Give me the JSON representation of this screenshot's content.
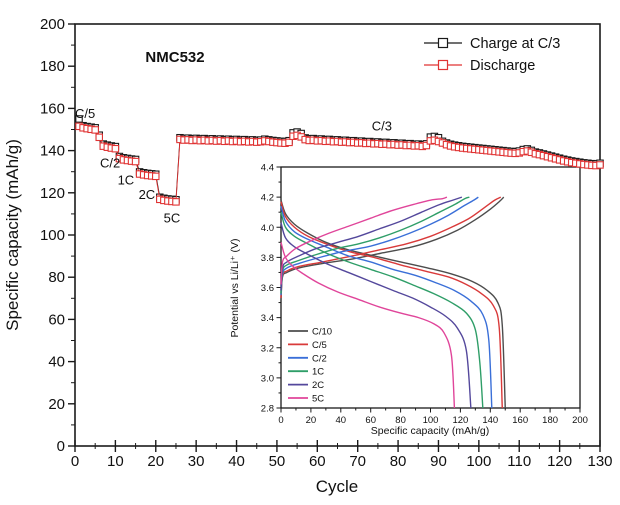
{
  "figure": {
    "background": "#ffffff"
  },
  "chart_data": [
    {
      "type": "scatter",
      "sample_label": "NMC532",
      "xlabel": "Cycle",
      "ylabel": "Specific capacity (mAh/g)",
      "xlim": [
        0,
        130
      ],
      "ylim": [
        0,
        200
      ],
      "x_major_tick": 10,
      "x_minor_tick": 5,
      "y_major_tick": 20,
      "y_minor_tick": 10,
      "grid": false,
      "legend_position": "top-right",
      "cycle_start": 1,
      "annotations": [
        {
          "text": "C/5",
          "x": 2.5,
          "y": 155.5
        },
        {
          "text": "C/2",
          "x": 8.7,
          "y": 132
        },
        {
          "text": "1C",
          "x": 12.6,
          "y": 124
        },
        {
          "text": "2C",
          "x": 17.8,
          "y": 117
        },
        {
          "text": "5C",
          "x": 24,
          "y": 106
        },
        {
          "text": "C/3",
          "x": 76,
          "y": 149.5
        }
      ],
      "series": [
        {
          "name": "Charge at C/3",
          "color": "#1a1a1a",
          "marker": "open-square",
          "values": [
            155.0,
            151.8,
            151.4,
            151.1,
            150.8,
            147.3,
            143.1,
            142.6,
            142.2,
            141.9,
            137.2,
            136.6,
            136.3,
            136.0,
            135.8,
            129.9,
            129.5,
            129.2,
            129.0,
            128.8,
            117.9,
            117.4,
            117.1,
            116.9,
            116.7,
            146.1,
            145.8,
            145.9,
            145.6,
            145.8,
            145.5,
            145.7,
            145.4,
            145.6,
            145.3,
            145.5,
            145.2,
            145.4,
            145.1,
            145.3,
            145.0,
            145.2,
            144.9,
            145.1,
            144.8,
            145.0,
            145.4,
            145.1,
            144.8,
            144.6,
            144.4,
            144.3,
            144.7,
            148.4,
            148.8,
            148.1,
            146.0,
            145.6,
            145.7,
            145.4,
            145.5,
            145.2,
            145.3,
            145.0,
            145.1,
            144.8,
            144.9,
            144.6,
            144.7,
            144.4,
            144.5,
            144.2,
            144.3,
            144.0,
            144.1,
            143.8,
            143.9,
            143.6,
            143.7,
            143.4,
            143.5,
            143.2,
            143.3,
            143.0,
            143.1,
            142.8,
            143.2,
            146.4,
            146.7,
            146.1,
            144.4,
            143.6,
            143.0,
            142.6,
            142.3,
            142.0,
            141.8,
            141.6,
            141.4,
            141.2,
            141.0,
            140.8,
            140.6,
            140.4,
            140.2,
            140.0,
            139.8,
            139.6,
            139.5,
            139.8,
            140.5,
            140.8,
            140.1,
            139.3,
            138.9,
            138.4,
            137.9,
            137.4,
            136.9,
            136.4,
            135.9,
            135.5,
            135.1,
            134.8,
            134.5,
            134.2,
            134.0,
            133.8,
            133.7,
            134.0
          ]
        },
        {
          "name": "Discharge",
          "color": "#e03333",
          "marker": "open-square",
          "values": [
            151.5,
            150.8,
            150.4,
            150.1,
            149.8,
            146.3,
            142.1,
            141.6,
            141.2,
            140.9,
            136.2,
            135.6,
            135.3,
            135.0,
            134.8,
            128.9,
            128.5,
            128.2,
            128.0,
            127.8,
            116.9,
            116.4,
            116.1,
            115.9,
            115.7,
            145.3,
            145.0,
            145.1,
            144.8,
            145.0,
            144.7,
            144.9,
            144.6,
            144.8,
            144.5,
            144.7,
            144.4,
            144.6,
            144.3,
            144.5,
            144.2,
            144.4,
            144.1,
            144.3,
            144.0,
            144.2,
            144.6,
            144.3,
            144.0,
            143.8,
            143.6,
            143.5,
            143.9,
            146.8,
            147.2,
            146.5,
            145.2,
            144.8,
            144.9,
            144.6,
            144.7,
            144.4,
            144.5,
            144.2,
            144.3,
            144.0,
            144.1,
            143.8,
            143.9,
            143.6,
            143.7,
            143.4,
            143.5,
            143.2,
            143.3,
            143.0,
            143.1,
            142.8,
            142.9,
            142.6,
            142.7,
            142.4,
            142.5,
            142.2,
            142.3,
            142.0,
            142.4,
            144.6,
            144.9,
            144.3,
            143.6,
            142.8,
            142.2,
            141.8,
            141.5,
            141.2,
            141.0,
            140.8,
            140.6,
            140.4,
            140.2,
            140.0,
            139.8,
            139.6,
            139.4,
            139.2,
            139.0,
            138.8,
            138.7,
            138.9,
            139.5,
            139.8,
            139.2,
            138.5,
            138.1,
            137.6,
            137.1,
            136.6,
            136.1,
            135.6,
            135.1,
            134.7,
            134.3,
            134.0,
            133.7,
            133.4,
            133.2,
            133.0,
            132.9,
            133.2
          ]
        }
      ]
    },
    {
      "type": "line",
      "xlabel": "Specific capacity (mAh/g)",
      "ylabel": "Potential vs Li/Li⁺ (V)",
      "xlim": [
        0,
        200
      ],
      "ylim": [
        2.8,
        4.4
      ],
      "x_major_tick": 20,
      "x_minor_tick": 10,
      "y_major_tick": 0.2,
      "y_minor_tick": 0.1,
      "grid": false,
      "legend_position": "lower-left",
      "series": [
        {
          "name": "C/10",
          "color": "#4d4d4d",
          "charge": [
            [
              0,
              3.52
            ],
            [
              1,
              3.67
            ],
            [
              4,
              3.7
            ],
            [
              12,
              3.73
            ],
            [
              28,
              3.76
            ],
            [
              48,
              3.79
            ],
            [
              68,
              3.83
            ],
            [
              88,
              3.87
            ],
            [
              104,
              3.92
            ],
            [
              118,
              3.98
            ],
            [
              130,
              4.05
            ],
            [
              140,
              4.12
            ],
            [
              146,
              4.17
            ],
            [
              149,
              4.2
            ]
          ],
          "discharge": [
            [
              0,
              4.18
            ],
            [
              3,
              4.09
            ],
            [
              9,
              4.02
            ],
            [
              18,
              3.96
            ],
            [
              30,
              3.9
            ],
            [
              45,
              3.85
            ],
            [
              62,
              3.81
            ],
            [
              80,
              3.77
            ],
            [
              98,
              3.73
            ],
            [
              114,
              3.69
            ],
            [
              128,
              3.64
            ],
            [
              138,
              3.58
            ],
            [
              145,
              3.5
            ],
            [
              148,
              3.35
            ],
            [
              150,
              2.8
            ]
          ]
        },
        {
          "name": "C/5",
          "color": "#d93a3a",
          "charge": [
            [
              0,
              3.53
            ],
            [
              1,
              3.68
            ],
            [
              4,
              3.71
            ],
            [
              12,
              3.74
            ],
            [
              28,
              3.77
            ],
            [
              48,
              3.81
            ],
            [
              66,
              3.85
            ],
            [
              84,
              3.89
            ],
            [
              100,
              3.94
            ],
            [
              114,
              4.0
            ],
            [
              126,
              4.06
            ],
            [
              136,
              4.13
            ],
            [
              143,
              4.18
            ],
            [
              147,
              4.2
            ]
          ],
          "discharge": [
            [
              0,
              4.17
            ],
            [
              3,
              4.07
            ],
            [
              9,
              4.0
            ],
            [
              18,
              3.94
            ],
            [
              30,
              3.89
            ],
            [
              45,
              3.84
            ],
            [
              62,
              3.8
            ],
            [
              80,
              3.75
            ],
            [
              96,
              3.71
            ],
            [
              112,
              3.67
            ],
            [
              124,
              3.62
            ],
            [
              134,
              3.56
            ],
            [
              142,
              3.48
            ],
            [
              146,
              3.33
            ],
            [
              148,
              2.8
            ]
          ]
        },
        {
          "name": "C/2",
          "color": "#3a6fd8",
          "charge": [
            [
              0,
              3.55
            ],
            [
              1,
              3.69
            ],
            [
              4,
              3.73
            ],
            [
              12,
              3.76
            ],
            [
              26,
              3.8
            ],
            [
              42,
              3.84
            ],
            [
              58,
              3.87
            ],
            [
              72,
              3.91
            ],
            [
              86,
              3.96
            ],
            [
              100,
              4.02
            ],
            [
              112,
              4.08
            ],
            [
              122,
              4.14
            ],
            [
              129,
              4.18
            ],
            [
              132,
              4.2
            ]
          ],
          "discharge": [
            [
              0,
              4.14
            ],
            [
              3,
              4.04
            ],
            [
              9,
              3.97
            ],
            [
              18,
              3.92
            ],
            [
              30,
              3.87
            ],
            [
              45,
              3.81
            ],
            [
              60,
              3.77
            ],
            [
              75,
              3.72
            ],
            [
              90,
              3.68
            ],
            [
              104,
              3.63
            ],
            [
              116,
              3.58
            ],
            [
              127,
              3.51
            ],
            [
              135,
              3.42
            ],
            [
              139,
              3.25
            ],
            [
              141,
              2.8
            ]
          ]
        },
        {
          "name": "1C",
          "color": "#2f9e68",
          "charge": [
            [
              0,
              3.56
            ],
            [
              1,
              3.71
            ],
            [
              4,
              3.75
            ],
            [
              12,
              3.78
            ],
            [
              24,
              3.82
            ],
            [
              38,
              3.86
            ],
            [
              52,
              3.89
            ],
            [
              66,
              3.93
            ],
            [
              80,
              3.98
            ],
            [
              94,
              4.04
            ],
            [
              106,
              4.1
            ],
            [
              116,
              4.15
            ],
            [
              123,
              4.19
            ],
            [
              126,
              4.2
            ]
          ],
          "discharge": [
            [
              0,
              4.1
            ],
            [
              3,
              4.0
            ],
            [
              9,
              3.94
            ],
            [
              18,
              3.89
            ],
            [
              30,
              3.83
            ],
            [
              45,
              3.77
            ],
            [
              60,
              3.72
            ],
            [
              75,
              3.67
            ],
            [
              90,
              3.61
            ],
            [
              102,
              3.56
            ],
            [
              114,
              3.5
            ],
            [
              124,
              3.43
            ],
            [
              130,
              3.32
            ],
            [
              133,
              3.1
            ],
            [
              135,
              2.8
            ]
          ]
        },
        {
          "name": "2C",
          "color": "#54489c",
          "charge": [
            [
              0,
              3.58
            ],
            [
              1,
              3.73
            ],
            [
              4,
              3.77
            ],
            [
              12,
              3.81
            ],
            [
              24,
              3.86
            ],
            [
              38,
              3.9
            ],
            [
              52,
              3.94
            ],
            [
              66,
              3.99
            ],
            [
              80,
              4.04
            ],
            [
              94,
              4.1
            ],
            [
              106,
              4.15
            ],
            [
              115,
              4.18
            ],
            [
              121,
              4.2
            ]
          ],
          "discharge": [
            [
              0,
              4.03
            ],
            [
              3,
              3.93
            ],
            [
              9,
              3.87
            ],
            [
              18,
              3.82
            ],
            [
              30,
              3.76
            ],
            [
              45,
              3.7
            ],
            [
              60,
              3.64
            ],
            [
              75,
              3.58
            ],
            [
              88,
              3.53
            ],
            [
              100,
              3.47
            ],
            [
              110,
              3.41
            ],
            [
              118,
              3.33
            ],
            [
              124,
              3.18
            ],
            [
              127,
              2.8
            ]
          ]
        },
        {
          "name": "5C",
          "color": "#e0459a",
          "charge": [
            [
              0,
              3.62
            ],
            [
              1,
              3.77
            ],
            [
              4,
              3.81
            ],
            [
              10,
              3.86
            ],
            [
              20,
              3.91
            ],
            [
              32,
              3.96
            ],
            [
              46,
              4.01
            ],
            [
              60,
              4.06
            ],
            [
              74,
              4.11
            ],
            [
              88,
              4.15
            ],
            [
              100,
              4.18
            ],
            [
              108,
              4.19
            ],
            [
              111,
              4.2
            ]
          ],
          "discharge": [
            [
              0,
              3.9
            ],
            [
              3,
              3.8
            ],
            [
              8,
              3.74
            ],
            [
              15,
              3.69
            ],
            [
              25,
              3.63
            ],
            [
              38,
              3.57
            ],
            [
              52,
              3.52
            ],
            [
              66,
              3.47
            ],
            [
              80,
              3.43
            ],
            [
              92,
              3.4
            ],
            [
              102,
              3.36
            ],
            [
              109,
              3.3
            ],
            [
              114,
              3.15
            ],
            [
              116,
              2.8
            ]
          ]
        }
      ]
    }
  ]
}
